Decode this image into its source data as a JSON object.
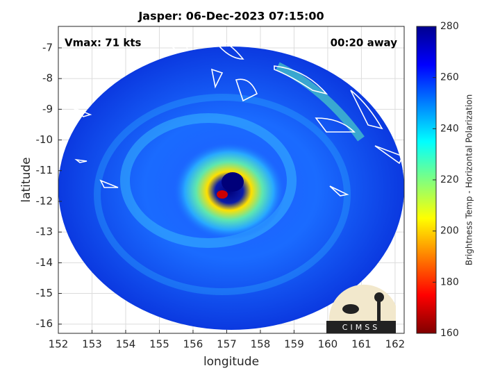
{
  "title": "Jasper: 06-Dec-2023 07:15:00",
  "annotations": {
    "vmax": "Vmax: 71 kts",
    "time_away": "00:20 away"
  },
  "map": {
    "xlabel": "longitude",
    "ylabel": "latitude",
    "xlim": [
      152,
      162.27
    ],
    "ylim": [
      -16.3,
      -6.3
    ],
    "xticks": [
      152,
      153,
      154,
      155,
      156,
      157,
      158,
      159,
      160,
      161,
      162
    ],
    "yticks": [
      -7,
      -8,
      -9,
      -10,
      -11,
      -12,
      -13,
      -14,
      -15,
      -16
    ],
    "grid": true
  },
  "colorbar": {
    "label": "Brightness Temp - Horizontal Polarization",
    "lim": [
      160,
      280
    ],
    "ticks": [
      160,
      180,
      200,
      220,
      240,
      260,
      280
    ]
  },
  "logo": "CIMSS"
}
